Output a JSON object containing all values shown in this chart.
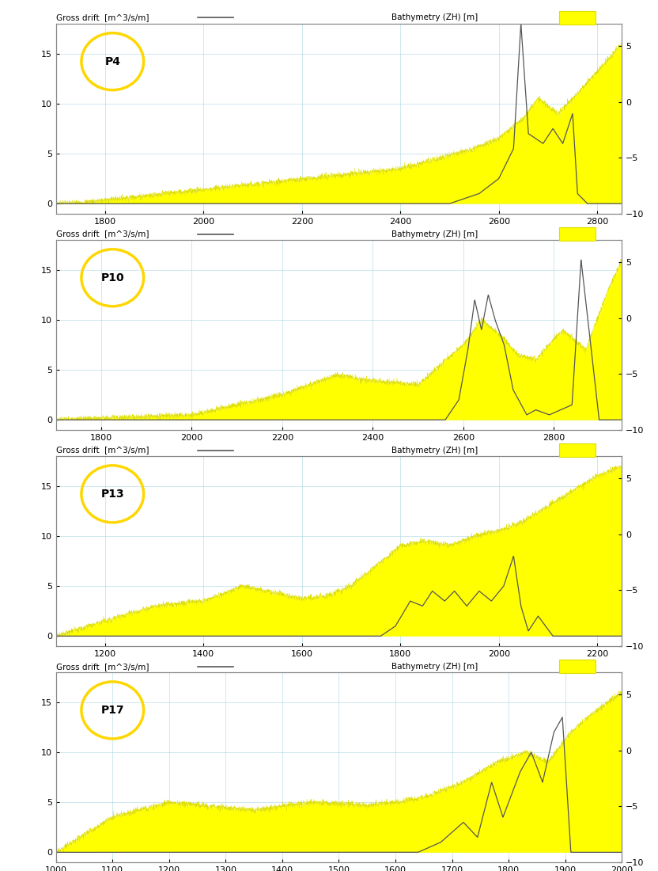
{
  "panels": [
    {
      "label": "P4",
      "xlim": [
        1700,
        2850
      ],
      "xticks": [
        1800,
        2000,
        2200,
        2400,
        2600,
        2800
      ],
      "ylim_left": [
        -1,
        18
      ],
      "ylim_right": [
        -10,
        7
      ],
      "yticks_left": [
        0,
        5,
        10,
        15
      ],
      "yticks_right": [
        -10,
        -5,
        0,
        5
      ]
    },
    {
      "label": "P10",
      "xlim": [
        1700,
        2950
      ],
      "xticks": [
        1800,
        2000,
        2200,
        2400,
        2600,
        2800
      ],
      "ylim_left": [
        -1,
        18
      ],
      "ylim_right": [
        -10,
        7
      ],
      "yticks_left": [
        0,
        5,
        10,
        15
      ],
      "yticks_right": [
        -10,
        -5,
        0,
        5
      ]
    },
    {
      "label": "P13",
      "xlim": [
        1100,
        2250
      ],
      "xticks": [
        1200,
        1400,
        1600,
        1800,
        2000,
        2200
      ],
      "ylim_left": [
        -1,
        18
      ],
      "ylim_right": [
        -10,
        7
      ],
      "yticks_left": [
        0,
        5,
        10,
        15
      ],
      "yticks_right": [
        -10,
        -5,
        0,
        5
      ]
    },
    {
      "label": "P17",
      "xlim": [
        1000,
        2000
      ],
      "xticks": [
        1000,
        1100,
        1200,
        1300,
        1400,
        1500,
        1600,
        1700,
        1800,
        1900,
        2000
      ],
      "ylim_left": [
        -1,
        18
      ],
      "ylim_right": [
        -10,
        7
      ],
      "yticks_left": [
        0,
        5,
        10,
        15
      ],
      "yticks_right": [
        -10,
        -5,
        0,
        5
      ]
    }
  ],
  "yellow_color": "#FFFF00",
  "yellow_edge": "#DDDD00",
  "line_color": "#555555",
  "grid_color": "#ADD8E6",
  "background_color": "#FFFFFF",
  "legend_line": "Gross drift  [m^3/s/m]",
  "legend_bathy": "Bathymetry (ZH) [m]"
}
